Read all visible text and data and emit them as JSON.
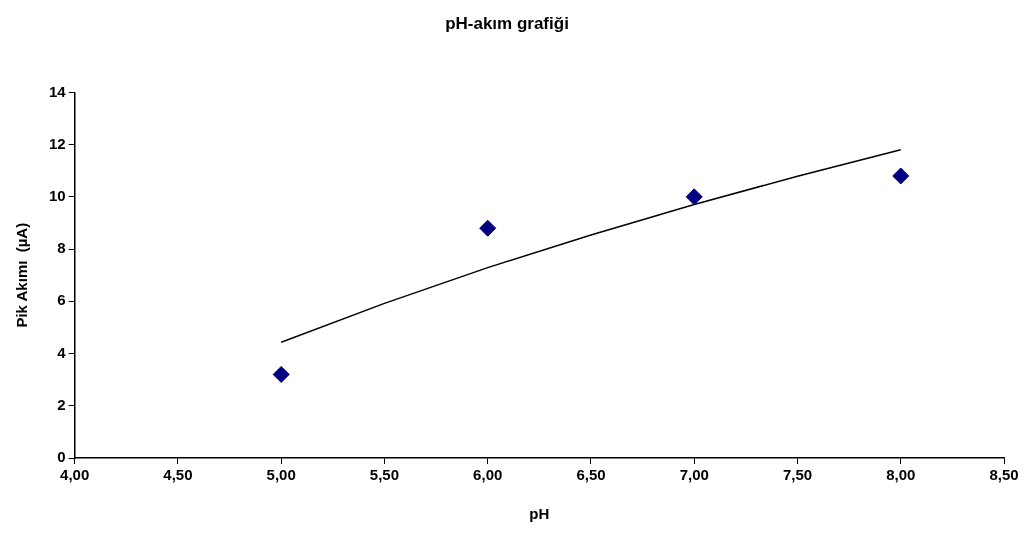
{
  "chart_data": {
    "type": "scatter",
    "title": "pH-akım grafiği",
    "xlabel": "pH",
    "ylabel": "Pik Akımı  (µA)",
    "xlim": [
      4,
      8.5
    ],
    "xticks": [
      {
        "value": 4,
        "label": "4,00"
      },
      {
        "value": 4.5,
        "label": "4,50"
      },
      {
        "value": 5,
        "label": "5,00"
      },
      {
        "value": 5.5,
        "label": "5,50"
      },
      {
        "value": 6,
        "label": "6,00"
      },
      {
        "value": 6.5,
        "label": "6,50"
      },
      {
        "value": 7,
        "label": "7,00"
      },
      {
        "value": 7.5,
        "label": "7,50"
      },
      {
        "value": 8,
        "label": "8,00"
      },
      {
        "value": 8.5,
        "label": "8,50"
      }
    ],
    "ylim": [
      0,
      14
    ],
    "yticks": [
      0,
      2,
      4,
      6,
      8,
      10,
      12,
      14
    ],
    "grid": false,
    "legend": false,
    "marker": "diamond",
    "series": [
      {
        "type": "scatter",
        "color": "#000080",
        "x": [
          5,
          6,
          7,
          8
        ],
        "values": [
          3.2,
          8.8,
          10.0,
          10.8
        ]
      },
      {
        "type": "line",
        "color": "#000000",
        "marker": "none",
        "x": [
          5,
          5.5,
          6,
          6.5,
          7,
          7.5,
          8
        ],
        "values": [
          4.43,
          5.92,
          7.29,
          8.54,
          9.71,
          10.79,
          11.8
        ]
      }
    ]
  }
}
